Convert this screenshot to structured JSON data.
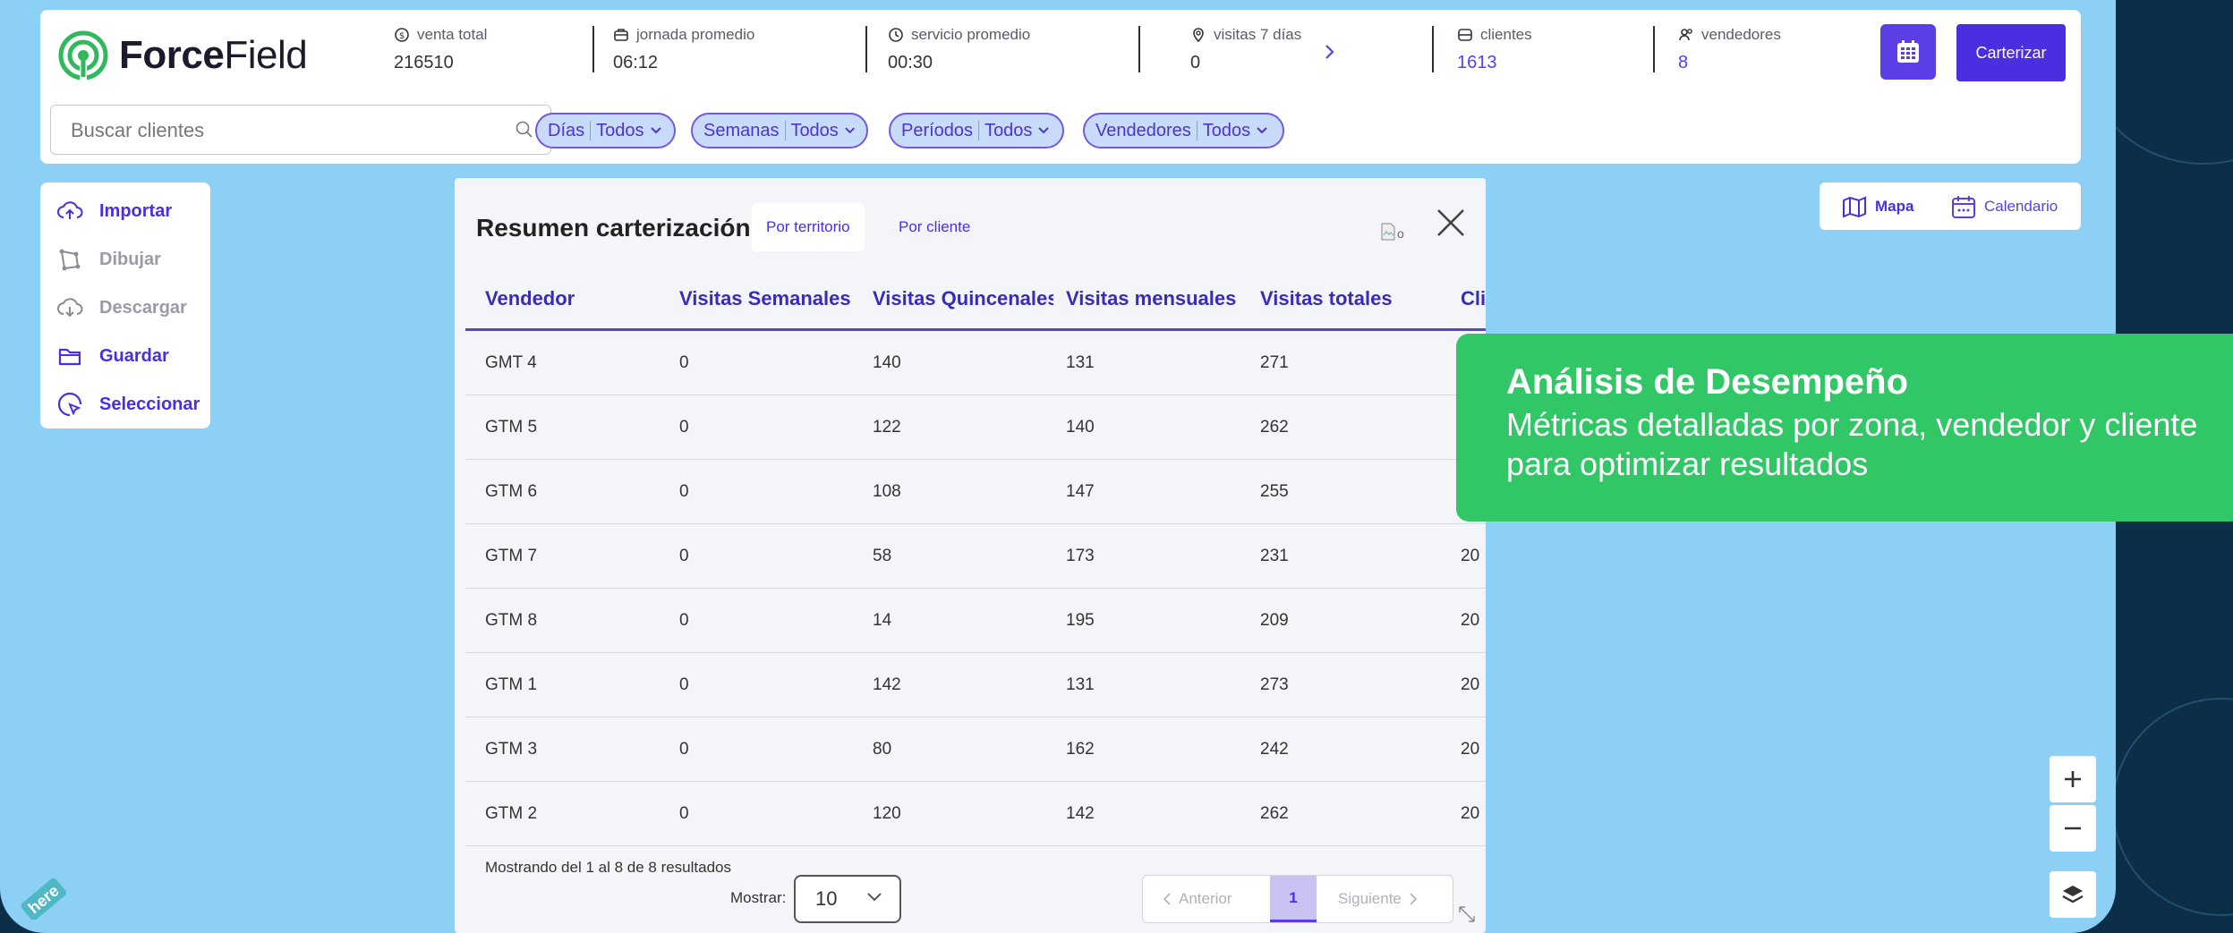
{
  "brand": {
    "name_bold": "Force",
    "name_regular": "Field"
  },
  "metrics": [
    {
      "label": "venta total",
      "value": "216510",
      "icon": "dollar-icon"
    },
    {
      "label": "jornada promedio",
      "value": "06:12",
      "icon": "briefcase-icon"
    },
    {
      "label": "servicio promedio",
      "value": "00:30",
      "icon": "clock-icon"
    },
    {
      "label": "visitas 7 días",
      "value": "0",
      "icon": "location-pin-icon"
    },
    {
      "label": "clientes",
      "value": "1613",
      "icon": "store-icon"
    },
    {
      "label": "vendedores",
      "value": "8",
      "icon": "users-icon"
    }
  ],
  "buttons": {
    "carterizar": "Carterizar"
  },
  "search": {
    "placeholder": "Buscar clientes"
  },
  "filters": [
    {
      "name": "Días",
      "value": "Todos"
    },
    {
      "name": "Semanas",
      "value": "Todos"
    },
    {
      "name": "Períodos",
      "value": "Todos"
    },
    {
      "name": "Vendedores",
      "value": "Todos"
    }
  ],
  "tools": [
    {
      "label": "Importar",
      "icon": "upload-icon",
      "state": "active"
    },
    {
      "label": "Dibujar",
      "icon": "polygon-icon",
      "state": "disabled"
    },
    {
      "label": "Descargar",
      "icon": "download-icon",
      "state": "disabled"
    },
    {
      "label": "Guardar",
      "icon": "folder-icon",
      "state": "active"
    },
    {
      "label": "Seleccionar",
      "icon": "select-icon",
      "state": "active"
    }
  ],
  "views": {
    "map": "Mapa",
    "calendar": "Calendario"
  },
  "panel": {
    "title": "Resumen carterización",
    "tabs": [
      "Por territorio",
      "Por cliente"
    ],
    "broken_image_alt": "o",
    "columns": [
      "Vendedor",
      "Visitas Semanales",
      "Visitas Quincenales",
      "Visitas mensuales",
      "Visitas totales",
      "Cli"
    ],
    "rows": [
      [
        "GMT 4",
        "0",
        "140",
        "131",
        "271",
        ""
      ],
      [
        "GTM 5",
        "0",
        "122",
        "140",
        "262",
        ""
      ],
      [
        "GTM 6",
        "0",
        "108",
        "147",
        "255",
        ""
      ],
      [
        "GTM 7",
        "0",
        "58",
        "173",
        "231",
        "20"
      ],
      [
        "GTM 8",
        "0",
        "14",
        "195",
        "209",
        "20"
      ],
      [
        "GTM 1",
        "0",
        "142",
        "131",
        "273",
        "20"
      ],
      [
        "GTM 3",
        "0",
        "80",
        "162",
        "242",
        "20"
      ],
      [
        "GTM 2",
        "0",
        "120",
        "142",
        "262",
        "20"
      ]
    ],
    "footer_info": "Mostrando del 1 al 8 de 8 resultados",
    "show_label": "Mostrar:",
    "show_value": "10",
    "pager": {
      "prev": "Anterior",
      "current": "1",
      "next": "Siguiente"
    }
  },
  "card": {
    "title": "Análisis de Desempeño",
    "text": "Métricas detalladas por zona, vendedor y cliente para optimizar resultados"
  },
  "map": {
    "attribution": "here"
  },
  "colors": {
    "accent": "#4a2ee0",
    "map_bg": "#8cd0f5",
    "card_green": "#32c766",
    "brand_green": "#2fb85c"
  }
}
